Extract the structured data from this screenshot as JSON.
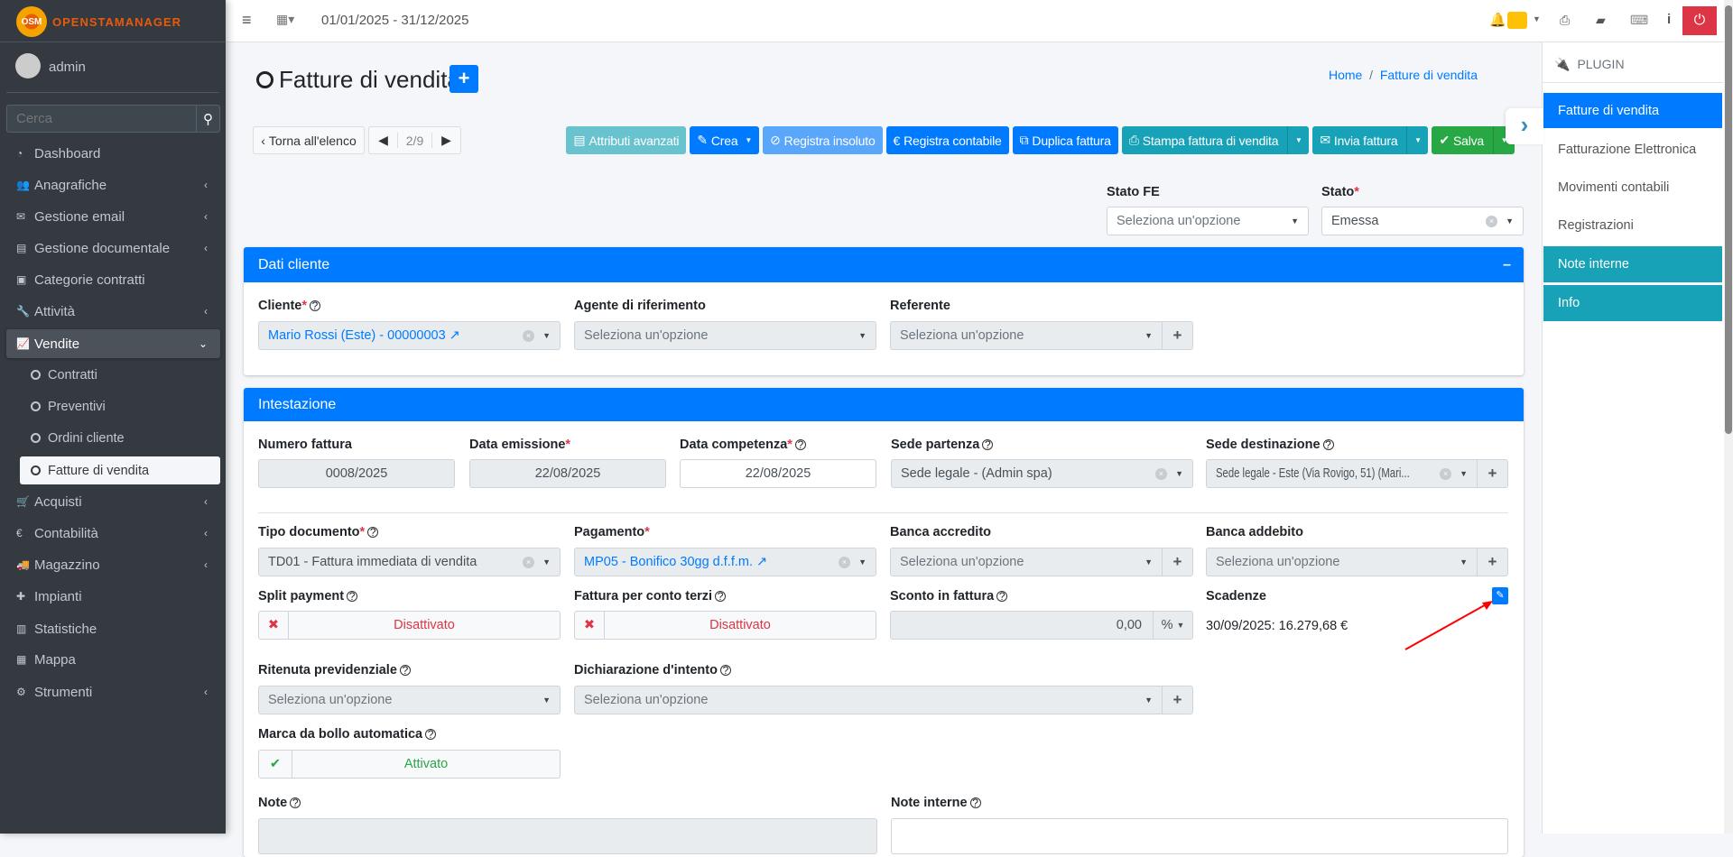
{
  "app": {
    "logo": "OpenSTAManager",
    "logo_badge": "OSM"
  },
  "user": {
    "name": "admin"
  },
  "search": {
    "placeholder": "Cerca"
  },
  "sidebar": {
    "items": [
      {
        "label": "Dashboard",
        "icon": "dashboard-icon"
      },
      {
        "label": "Anagrafiche",
        "icon": "users-icon"
      },
      {
        "label": "Gestione email",
        "icon": "envelope-icon"
      },
      {
        "label": "Gestione documentale",
        "icon": "file-icon"
      },
      {
        "label": "Categorie contratti",
        "icon": "briefcase-icon"
      },
      {
        "label": "Attività",
        "icon": "wrench-icon"
      },
      {
        "label": "Vendite",
        "icon": "chart-icon"
      },
      {
        "label": "Acquisti",
        "icon": "cart-icon"
      },
      {
        "label": "Contabilità",
        "icon": "euro-icon"
      },
      {
        "label": "Magazzino",
        "icon": "truck-icon"
      },
      {
        "label": "Impianti",
        "icon": "puzzle-icon"
      },
      {
        "label": "Statistiche",
        "icon": "bar-chart-icon"
      },
      {
        "label": "Mappa",
        "icon": "map-icon"
      },
      {
        "label": "Strumenti",
        "icon": "cog-icon"
      }
    ],
    "vendite_sub": [
      "Contratti",
      "Preventivi",
      "Ordini cliente",
      "Fatture di vendita"
    ]
  },
  "topbar": {
    "period": "01/01/2025 - 31/12/2025"
  },
  "page": {
    "title": "Fatture di vendita",
    "breadcrumb": [
      "Home",
      "Fatture di vendita"
    ]
  },
  "toolbar": {
    "back": "Torna all'elenco",
    "position": "2/9",
    "attributi": "Attributi avanzati",
    "crea": "Crea",
    "insoluto": "Registra insoluto",
    "contabile": "Registra contabile",
    "duplica": "Duplica fattura",
    "stampa": "Stampa fattura di vendita",
    "invia": "Invia fattura",
    "salva": "Salva"
  },
  "status": {
    "stato_fe_label": "Stato FE",
    "stato_fe_value": "Seleziona un'opzione",
    "stato_label": "Stato",
    "stato_value": "Emessa"
  },
  "plugin": {
    "header": "PLUGIN",
    "items": [
      "Fatture di vendita",
      "Fatturazione Elettronica",
      "Movimenti contabili",
      "Registrazioni",
      "Note interne",
      "Info"
    ]
  },
  "dati_cliente": {
    "title": "Dati cliente",
    "cliente_label": "Cliente",
    "cliente_value": "Mario Rossi (Este) - 00000003",
    "agente_label": "Agente di riferimento",
    "agente_value": "Seleziona un'opzione",
    "referente_label": "Referente",
    "referente_value": "Seleziona un'opzione"
  },
  "intestazione": {
    "title": "Intestazione",
    "numero_label": "Numero fattura",
    "numero_value": "0008/2025",
    "emissione_label": "Data emissione",
    "emissione_value": "22/08/2025",
    "competenza_label": "Data competenza",
    "competenza_value": "22/08/2025",
    "sede_partenza_label": "Sede partenza",
    "sede_partenza_value": "Sede legale - (Admin spa)",
    "sede_dest_label": "Sede destinazione",
    "sede_dest_value": "Sede legale - Este (Via Rovigo, 51) (Mari...",
    "tipo_label": "Tipo documento",
    "tipo_value": "TD01 - Fattura immediata di vendita",
    "pagamento_label": "Pagamento",
    "pagamento_value": "MP05 - Bonifico 30gg d.f.f.m.",
    "banca_accr_label": "Banca accredito",
    "banca_accr_value": "Seleziona un'opzione",
    "banca_add_label": "Banca addebito",
    "banca_add_value": "Seleziona un'opzione",
    "split_label": "Split payment",
    "split_value": "Disattivato",
    "conto_terzi_label": "Fattura per conto terzi",
    "conto_terzi_value": "Disattivato",
    "sconto_label": "Sconto in fattura",
    "sconto_value": "0,00",
    "sconto_unit": "%",
    "scadenze_label": "Scadenze",
    "scadenze_value": "30/09/2025: 16.279,68 €",
    "ritenuta_label": "Ritenuta previdenziale",
    "ritenuta_value": "Seleziona un'opzione",
    "dichiarazione_label": "Dichiarazione d'intento",
    "dichiarazione_value": "Seleziona un'opzione",
    "bollo_label": "Marca da bollo automatica",
    "bollo_value": "Attivato",
    "note_label": "Note",
    "note_interne_label": "Note interne"
  },
  "colors": {
    "primary": "#007bff",
    "info": "#17a2b8",
    "success": "#28a745",
    "danger": "#dc3545",
    "sidebar": "#343a40"
  }
}
